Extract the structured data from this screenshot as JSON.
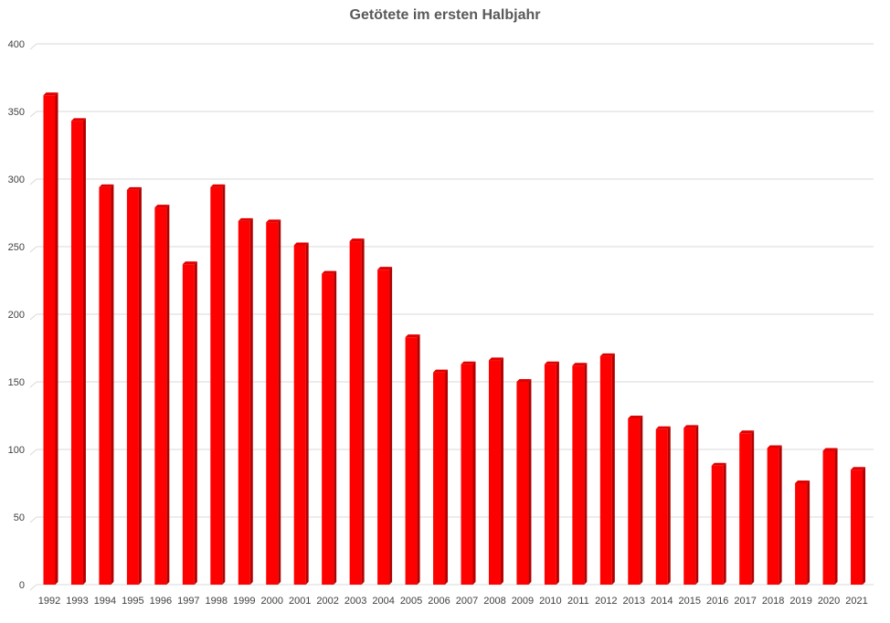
{
  "chart_data": {
    "type": "bar",
    "title": "Getötete im ersten Halbjahr",
    "xlabel": "",
    "ylabel": "",
    "ylim": [
      0,
      400
    ],
    "yticks": [
      0,
      50,
      100,
      150,
      200,
      250,
      300,
      350,
      400
    ],
    "grid": true,
    "legend": "none",
    "bar_color": "#ff0000",
    "bar_side_color": "#b30000",
    "bar_top_color": "#e00000",
    "grid_color": "#d9d9d9",
    "categories": [
      "1992",
      "1993",
      "1994",
      "1995",
      "1996",
      "1997",
      "1998",
      "1999",
      "2000",
      "2001",
      "2002",
      "2003",
      "2004",
      "2005",
      "2006",
      "2007",
      "2008",
      "2009",
      "2010",
      "2011",
      "2012",
      "2013",
      "2014",
      "2015",
      "2016",
      "2017",
      "2018",
      "2019",
      "2020",
      "2021"
    ],
    "values": [
      362,
      343,
      294,
      292,
      279,
      237,
      294,
      269,
      268,
      251,
      230,
      254,
      233,
      183,
      157,
      163,
      166,
      150,
      163,
      162,
      169,
      123,
      115,
      116,
      88,
      112,
      101,
      75,
      99,
      85
    ]
  }
}
